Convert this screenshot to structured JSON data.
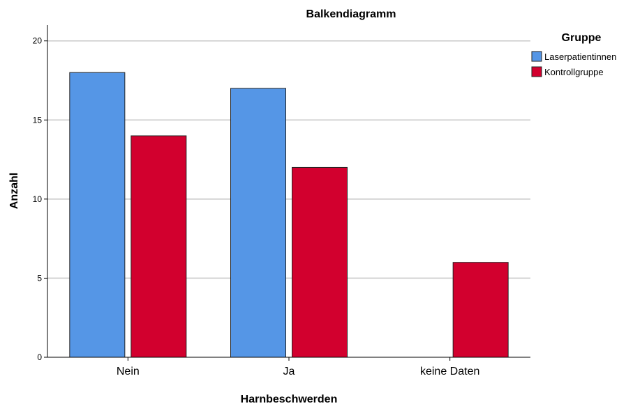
{
  "chart_data": {
    "type": "bar",
    "title": "Balkendiagramm",
    "xlabel": "Harnbeschwerden",
    "ylabel": "Anzahl",
    "categories": [
      "Nein",
      "Ja",
      "keine Daten"
    ],
    "series": [
      {
        "name": "Laserpatientinnen",
        "color": "#5596e6",
        "values": [
          18,
          17,
          0
        ]
      },
      {
        "name": "Kontrollgruppe",
        "color": "#d2002e",
        "values": [
          14,
          12,
          6
        ]
      }
    ],
    "ylim": [
      0,
      21
    ],
    "yticks": [
      0,
      5,
      10,
      15,
      20
    ],
    "grid": true,
    "legend": {
      "title": "Gruppe",
      "placement": "right"
    }
  }
}
